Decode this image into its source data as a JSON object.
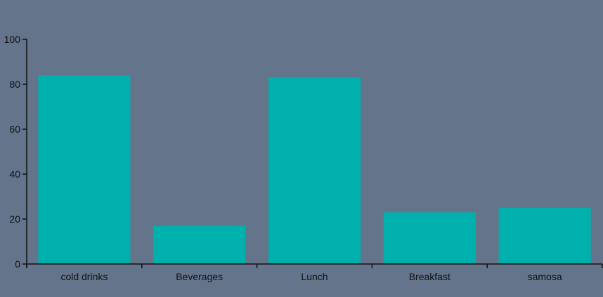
{
  "chart_data": {
    "type": "bar",
    "categories": [
      "cold drinks",
      "Beverages",
      "Lunch",
      "Breakfast",
      "samosa"
    ],
    "values": [
      84,
      17,
      83,
      23,
      25
    ],
    "ylim": [
      0,
      100
    ],
    "yticks": [
      0,
      20,
      40,
      60,
      80,
      100
    ],
    "title": "",
    "xlabel": "",
    "ylabel": "",
    "grid": false,
    "legend": "none",
    "colors": {
      "background": "#64748b",
      "bar": "#00b0ad",
      "axis": "#111111"
    }
  }
}
